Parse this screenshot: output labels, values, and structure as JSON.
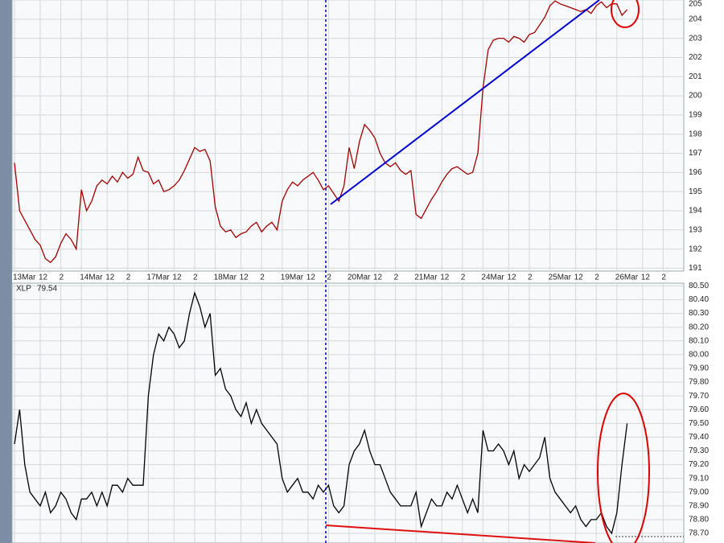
{
  "chart_data": [
    {
      "type": "line",
      "categories": [
        "13Mar",
        null,
        null,
        null,
        null,
        "12",
        null,
        null,
        null,
        "2",
        null,
        null,
        null,
        "14Mar",
        null,
        null,
        null,
        null,
        "12",
        null,
        null,
        null,
        "2",
        null,
        null,
        null,
        "17Mar",
        null,
        null,
        null,
        null,
        "12",
        null,
        null,
        null,
        "2",
        null,
        null,
        null,
        "18Mar",
        null,
        null,
        null,
        null,
        "12",
        null,
        null,
        null,
        "2",
        null,
        null,
        null,
        "19Mar",
        null,
        null,
        null,
        null,
        "12",
        null,
        null,
        null,
        "2",
        null,
        null,
        null,
        "20Mar",
        null,
        null,
        null,
        null,
        "12",
        null,
        null,
        null,
        "2",
        null,
        null,
        null,
        "21Mar",
        null,
        null,
        null,
        null,
        "12",
        null,
        null,
        null,
        "2",
        null,
        null,
        null,
        "24Mar",
        null,
        null,
        null,
        null,
        "12",
        null,
        null,
        null,
        "2",
        null,
        null,
        null,
        "25Mar",
        null,
        null,
        null,
        null,
        "12",
        null,
        null,
        null,
        "2",
        null,
        null,
        null,
        "26Mar",
        null,
        null,
        null,
        null,
        "12",
        null,
        null,
        null,
        "2",
        null,
        null,
        null
      ],
      "ylim": [
        190.85,
        205
      ],
      "yticks": [
        191,
        192,
        193,
        194,
        195,
        196,
        197,
        198,
        199,
        200,
        201,
        202,
        203,
        204,
        205
      ],
      "grid": true,
      "series": [
        {
          "color": "#a00000",
          "values": [
            196.5,
            194,
            193.5,
            193,
            192.5,
            192.2,
            191.5,
            191.3,
            191.6,
            192.3,
            192.8,
            192.5,
            192,
            195.1,
            194,
            194.5,
            195.3,
            195.6,
            195.4,
            195.8,
            195.5,
            196,
            195.7,
            195.9,
            196.8,
            196.1,
            196,
            195.4,
            195.6,
            195,
            195.1,
            195.3,
            195.6,
            196.1,
            196.7,
            197.3,
            197.1,
            197.2,
            196.6,
            194.2,
            193.2,
            192.9,
            193,
            192.6,
            192.8,
            192.9,
            193.2,
            193.4,
            192.9,
            193.2,
            193.4,
            193,
            194.5,
            195.1,
            195.5,
            195.3,
            195.6,
            195.8,
            196,
            195.6,
            195.1,
            195.3,
            194.9,
            194.5,
            195.3,
            197.3,
            196.2,
            197.6,
            198.5,
            198.2,
            197.8,
            197,
            196.5,
            196.3,
            196.5,
            196.1,
            195.9,
            196.1,
            193.8,
            193.6,
            194.1,
            194.6,
            195,
            195.5,
            195.9,
            196.2,
            196.3,
            196.1,
            195.9,
            196,
            197,
            200.4,
            202.4,
            202.9,
            203,
            203,
            202.8,
            203.1,
            203,
            202.8,
            203.2,
            203.3,
            203.7,
            204.1,
            204.7,
            204.95,
            204.8,
            204.7,
            204.6,
            204.5,
            204.4,
            204.5,
            204.3,
            204.7,
            204.9,
            204.6,
            204.8,
            204.8,
            204.2,
            204.5,
            null,
            null,
            null,
            null,
            null,
            null,
            null,
            null,
            null,
            null
          ]
        }
      ]
    },
    {
      "type": "line",
      "ylim": [
        78.63,
        80.52
      ],
      "yticks": [
        {
          "value": 78.7,
          "label": "78.70"
        },
        {
          "value": 78.8,
          "label": "78.80"
        },
        {
          "value": 78.9,
          "label": "78.90"
        },
        {
          "value": 79.0,
          "label": "79.00"
        },
        {
          "value": 79.1,
          "label": "79.10"
        },
        {
          "value": 79.2,
          "label": "79.20"
        },
        {
          "value": 79.3,
          "label": "79.30"
        },
        {
          "value": 79.4,
          "label": "79.40"
        },
        {
          "value": 79.5,
          "label": "79.50"
        },
        {
          "value": 79.6,
          "label": "79.60"
        },
        {
          "value": 79.7,
          "label": "79.70"
        },
        {
          "value": 79.8,
          "label": "79.80"
        },
        {
          "value": 79.9,
          "label": "79.90"
        },
        {
          "value": 80.0,
          "label": "80.00"
        },
        {
          "value": 80.1,
          "label": "80.10"
        },
        {
          "value": 80.2,
          "label": "80.20"
        },
        {
          "value": 80.3,
          "label": "80.30"
        },
        {
          "value": 80.4,
          "label": "80.40"
        },
        {
          "value": 80.5,
          "label": "80.50"
        }
      ],
      "grid": true,
      "legend_value": 79.54,
      "series": [
        {
          "name": "XLP",
          "color": "#000000",
          "values": [
            79.35,
            79.6,
            79.2,
            79.0,
            78.95,
            78.9,
            79.0,
            78.85,
            78.9,
            79.0,
            78.95,
            78.85,
            78.8,
            78.95,
            78.95,
            79.0,
            78.9,
            79.0,
            78.9,
            79.05,
            79.05,
            79.0,
            79.1,
            79.05,
            79.05,
            79.05,
            79.7,
            80.0,
            80.15,
            80.1,
            80.2,
            80.15,
            80.05,
            80.1,
            80.3,
            80.45,
            80.35,
            80.2,
            80.3,
            79.85,
            79.9,
            79.75,
            79.7,
            79.6,
            79.55,
            79.65,
            79.5,
            79.6,
            79.5,
            79.45,
            79.4,
            79.35,
            79.1,
            79.0,
            79.05,
            79.1,
            79.0,
            79.0,
            78.95,
            79.05,
            79.0,
            79.05,
            78.9,
            78.85,
            78.9,
            79.2,
            79.3,
            79.35,
            79.45,
            79.3,
            79.2,
            79.2,
            79.1,
            79.0,
            78.95,
            78.9,
            78.9,
            78.9,
            79.0,
            78.75,
            78.85,
            78.95,
            78.9,
            78.9,
            79.0,
            78.95,
            79.05,
            78.95,
            78.85,
            78.95,
            78.85,
            79.45,
            79.3,
            79.3,
            79.35,
            79.3,
            79.2,
            79.3,
            79.1,
            79.2,
            79.15,
            79.2,
            79.25,
            79.4,
            79.1,
            79.0,
            78.95,
            78.9,
            78.85,
            78.9,
            78.8,
            78.75,
            78.8,
            78.8,
            78.85,
            78.75,
            78.7,
            78.85,
            79.2,
            79.5,
            null,
            null,
            null,
            null,
            null,
            null,
            null,
            null,
            null,
            null
          ]
        }
      ]
    }
  ]
}
